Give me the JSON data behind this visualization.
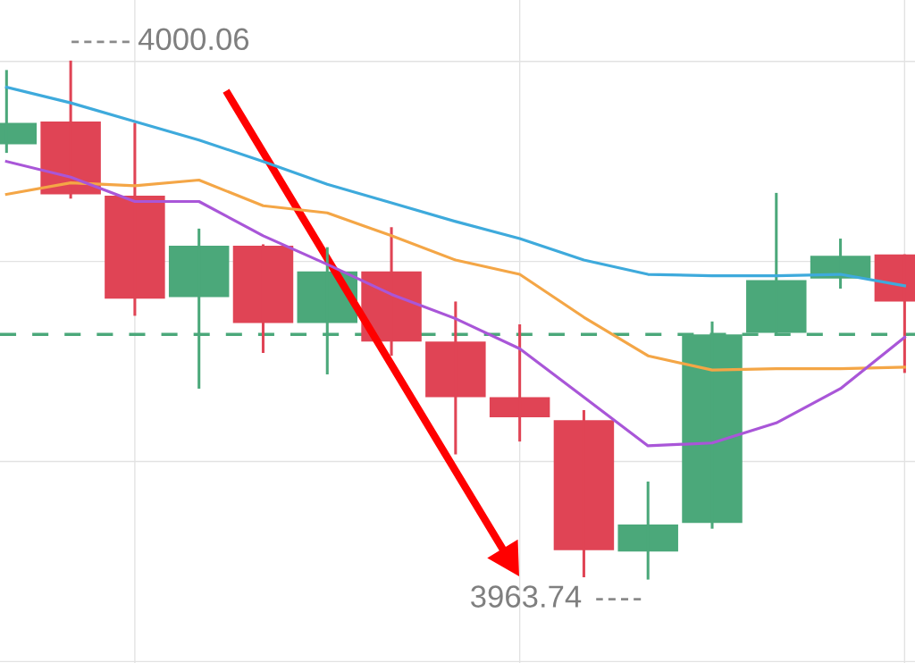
{
  "chart_data": {
    "type": "candlestick",
    "categories": [
      null,
      null,
      null,
      null,
      null,
      null,
      null,
      null,
      null,
      null,
      null,
      null,
      null,
      null,
      null
    ],
    "ohlc": [
      [
        3994.2,
        3999.4,
        3993.6,
        3995.7
      ],
      [
        3995.8,
        4000.06,
        3990.4,
        3990.7
      ],
      [
        3990.6,
        3995.7,
        3982.2,
        3983.4
      ],
      [
        3983.5,
        3988.3,
        3977.1,
        3987.1
      ],
      [
        3987.1,
        3987.2,
        3979.6,
        3981.7
      ],
      [
        3981.7,
        3987.0,
        3978.1,
        3985.3
      ],
      [
        3985.3,
        3988.4,
        3979.4,
        3980.4
      ],
      [
        3980.4,
        3983.2,
        3972.5,
        3976.5
      ],
      [
        3976.5,
        3981.6,
        3973.4,
        3975.1
      ],
      [
        3974.9,
        3975.6,
        3963.9,
        3965.8
      ],
      [
        3965.7,
        3970.6,
        3963.74,
        3967.6
      ],
      [
        3967.7,
        3981.8,
        3967.3,
        3980.9
      ],
      [
        3981.0,
        3990.8,
        3980.8,
        3984.7
      ],
      [
        3984.8,
        3987.6,
        3984.1,
        3986.4
      ],
      [
        3986.5,
        3986.5,
        3978.2,
        3983.2
      ]
    ],
    "colors": [
      "#4ba87a",
      "#e04455",
      "#e04455",
      "#4ba87a",
      "#e04455",
      "#4ba87a",
      "#e04455",
      "#e04455",
      "#e04455",
      "#e04455",
      "#4ba87a",
      "#4ba87a",
      "#4ba87a",
      "#4ba87a",
      "#e04455"
    ],
    "series": [
      {
        "type": "line",
        "color": "#3eaadc",
        "values": [
          3998.2,
          3997.1,
          3995.8,
          3994.5,
          3993.0,
          3991.4,
          3990.1,
          3988.8,
          3987.6,
          3986.1,
          3985.1,
          3985.0,
          3985.0,
          3985.1,
          3984.3
        ]
      },
      {
        "type": "line",
        "color": "#f4a646",
        "values": [
          3990.7,
          3991.5,
          3991.3,
          3991.7,
          3989.9,
          3989.4,
          3987.8,
          3986.1,
          3985.1,
          3982.1,
          3979.4,
          3978.4,
          3978.5,
          3978.5,
          3978.6
        ]
      },
      {
        "type": "line",
        "color": "#a956d8",
        "values": [
          3993.0,
          3991.9,
          3990.2,
          3990.2,
          3987.8,
          3985.8,
          3983.7,
          3982.0,
          3979.9,
          3976.5,
          3973.1,
          3973.3,
          3974.7,
          3977.1,
          3980.7
        ]
      }
    ],
    "ylim": [
      3957.9,
      4004.3
    ],
    "yticks": [
      {
        "value": 3958,
        "label": null
      },
      {
        "value": 3972,
        "label": null
      },
      {
        "value": 3986,
        "label": null
      },
      {
        "value": 4000,
        "label": null
      }
    ],
    "grid": true,
    "ref_lines": [
      {
        "axis": "y",
        "value": 3980.9,
        "color": "#4ba87a",
        "line_style": "dashed"
      }
    ],
    "annotations": [
      "4000.06",
      "3963.74"
    ]
  }
}
